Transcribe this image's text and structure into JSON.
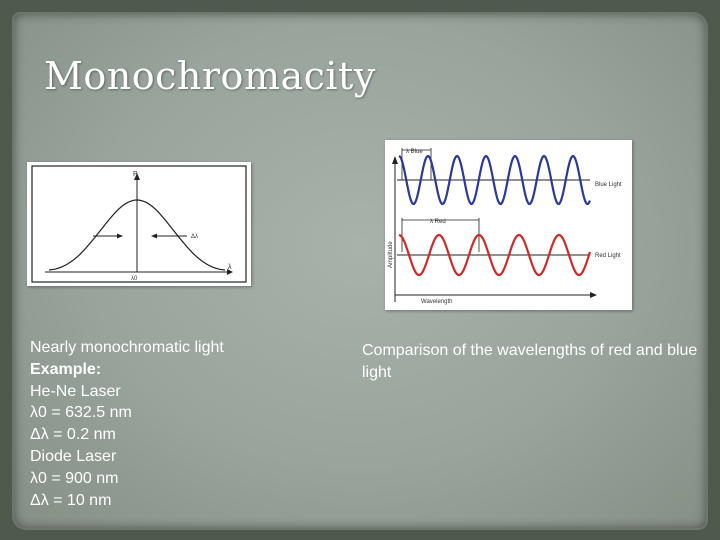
{
  "slide": {
    "title": "Monochromacity",
    "left_column": {
      "lines": [
        "Nearly monochromatic light",
        "Example:",
        "He-Ne Laser",
        "λ0 = 632.5 nm",
        "Δλ = 0.2 nm",
        "Diode Laser",
        "λ0 = 900 nm",
        "Δλ = 10 nm"
      ]
    },
    "right_column": {
      "caption": "Comparison of the wavelengths of red and blue light"
    },
    "spectrum_figure": {
      "y_label": "P",
      "x_label": "λ",
      "center_label": "λ0",
      "width_label": "Δλ"
    },
    "wave_figure": {
      "blue_wavelength_label": "λ Blue",
      "blue_light_label": "Blue Light",
      "red_wavelength_label": "λ Red",
      "red_light_label": "Red Light",
      "y_axis_label": "Amplitude",
      "x_axis_label": "Wavelength",
      "colors": {
        "blue": "#2b3a9a",
        "red": "#cf2a2a"
      }
    }
  }
}
